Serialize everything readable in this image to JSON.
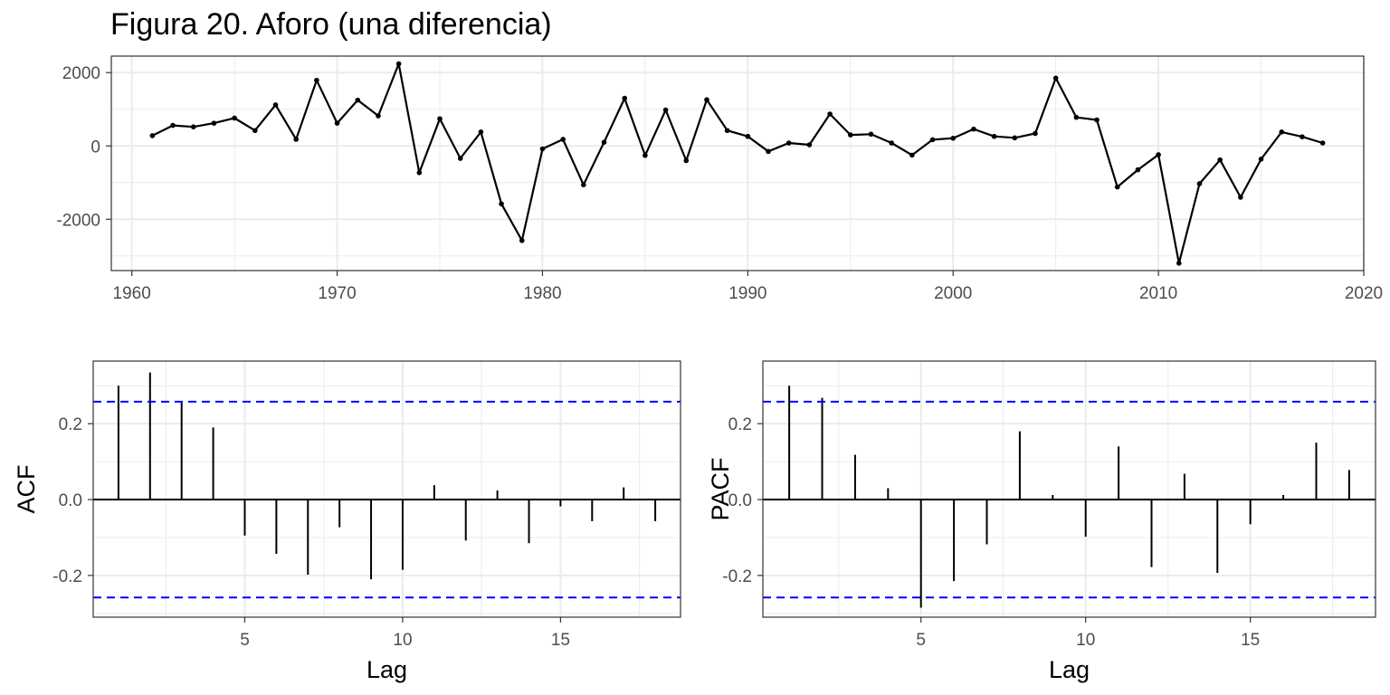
{
  "title": "Figura 20. Aforo (una diferencia)",
  "colors": {
    "line": "#000000",
    "ci": "#0000ff",
    "grid": "#ebebeb",
    "axis_text": "#4d4d4d",
    "border": "#333333"
  },
  "chart_data": [
    {
      "type": "line",
      "title": "Figura 20. Aforo (una diferencia)",
      "xlabel": "",
      "ylabel": "",
      "x_ticks": [
        1960,
        1970,
        1980,
        1990,
        2000,
        2010,
        2020
      ],
      "y_ticks": [
        -2000,
        0,
        2000
      ],
      "xlim": [
        1959,
        2020
      ],
      "ylim": [
        -3400,
        2450
      ],
      "grid": true,
      "markers": true,
      "x": [
        1961,
        1962,
        1963,
        1964,
        1965,
        1966,
        1967,
        1968,
        1969,
        1970,
        1971,
        1972,
        1973,
        1974,
        1975,
        1976,
        1977,
        1978,
        1979,
        1980,
        1981,
        1982,
        1983,
        1984,
        1985,
        1986,
        1987,
        1988,
        1989,
        1990,
        1991,
        1992,
        1993,
        1994,
        1995,
        1996,
        1997,
        1998,
        1999,
        2000,
        2001,
        2002,
        2003,
        2004,
        2005,
        2006,
        2007,
        2008,
        2009,
        2010,
        2011,
        2012,
        2013,
        2014,
        2015,
        2016,
        2017,
        2018
      ],
      "y": [
        280,
        560,
        520,
        620,
        760,
        420,
        1120,
        180,
        1790,
        620,
        1250,
        820,
        2240,
        -730,
        740,
        -340,
        380,
        -1580,
        -2580,
        -80,
        180,
        -1060,
        100,
        1300,
        -260,
        980,
        -400,
        1260,
        420,
        260,
        -150,
        80,
        30,
        870,
        300,
        320,
        80,
        -250,
        170,
        210,
        460,
        260,
        220,
        340,
        1850,
        780,
        710,
        -1120,
        -650,
        -240,
        -3200,
        -1030,
        -380,
        -1400,
        -360,
        380,
        250,
        80
      ]
    },
    {
      "type": "bar",
      "xlabel": "Lag",
      "ylabel": "ACF",
      "x_ticks": [
        5,
        10,
        15
      ],
      "y_ticks": [
        -0.2,
        0.0,
        0.2
      ],
      "xlim": [
        0.2,
        18.8
      ],
      "ylim": [
        -0.31,
        0.365
      ],
      "grid": true,
      "ci": 0.258,
      "x": [
        1,
        2,
        3,
        4,
        5,
        6,
        7,
        8,
        9,
        10,
        11,
        12,
        13,
        14,
        15,
        16,
        17,
        18
      ],
      "values": [
        0.3,
        0.335,
        0.256,
        0.19,
        -0.095,
        -0.143,
        -0.198,
        -0.073,
        -0.21,
        -0.185,
        0.038,
        -0.108,
        0.024,
        -0.115,
        -0.018,
        -0.057,
        0.032,
        -0.057
      ]
    },
    {
      "type": "bar",
      "xlabel": "Lag",
      "ylabel": "PACF",
      "x_ticks": [
        5,
        10,
        15
      ],
      "y_ticks": [
        -0.2,
        0.0,
        0.2
      ],
      "xlim": [
        0.2,
        18.8
      ],
      "ylim": [
        -0.31,
        0.365
      ],
      "grid": true,
      "ci": 0.258,
      "x": [
        1,
        2,
        3,
        4,
        5,
        6,
        7,
        8,
        9,
        10,
        11,
        12,
        13,
        14,
        15,
        16,
        17,
        18
      ],
      "values": [
        0.3,
        0.268,
        0.118,
        0.03,
        -0.285,
        -0.215,
        -0.118,
        0.18,
        0.012,
        -0.098,
        0.14,
        -0.178,
        0.068,
        -0.193,
        -0.065,
        0.012,
        0.15,
        0.078
      ]
    }
  ]
}
